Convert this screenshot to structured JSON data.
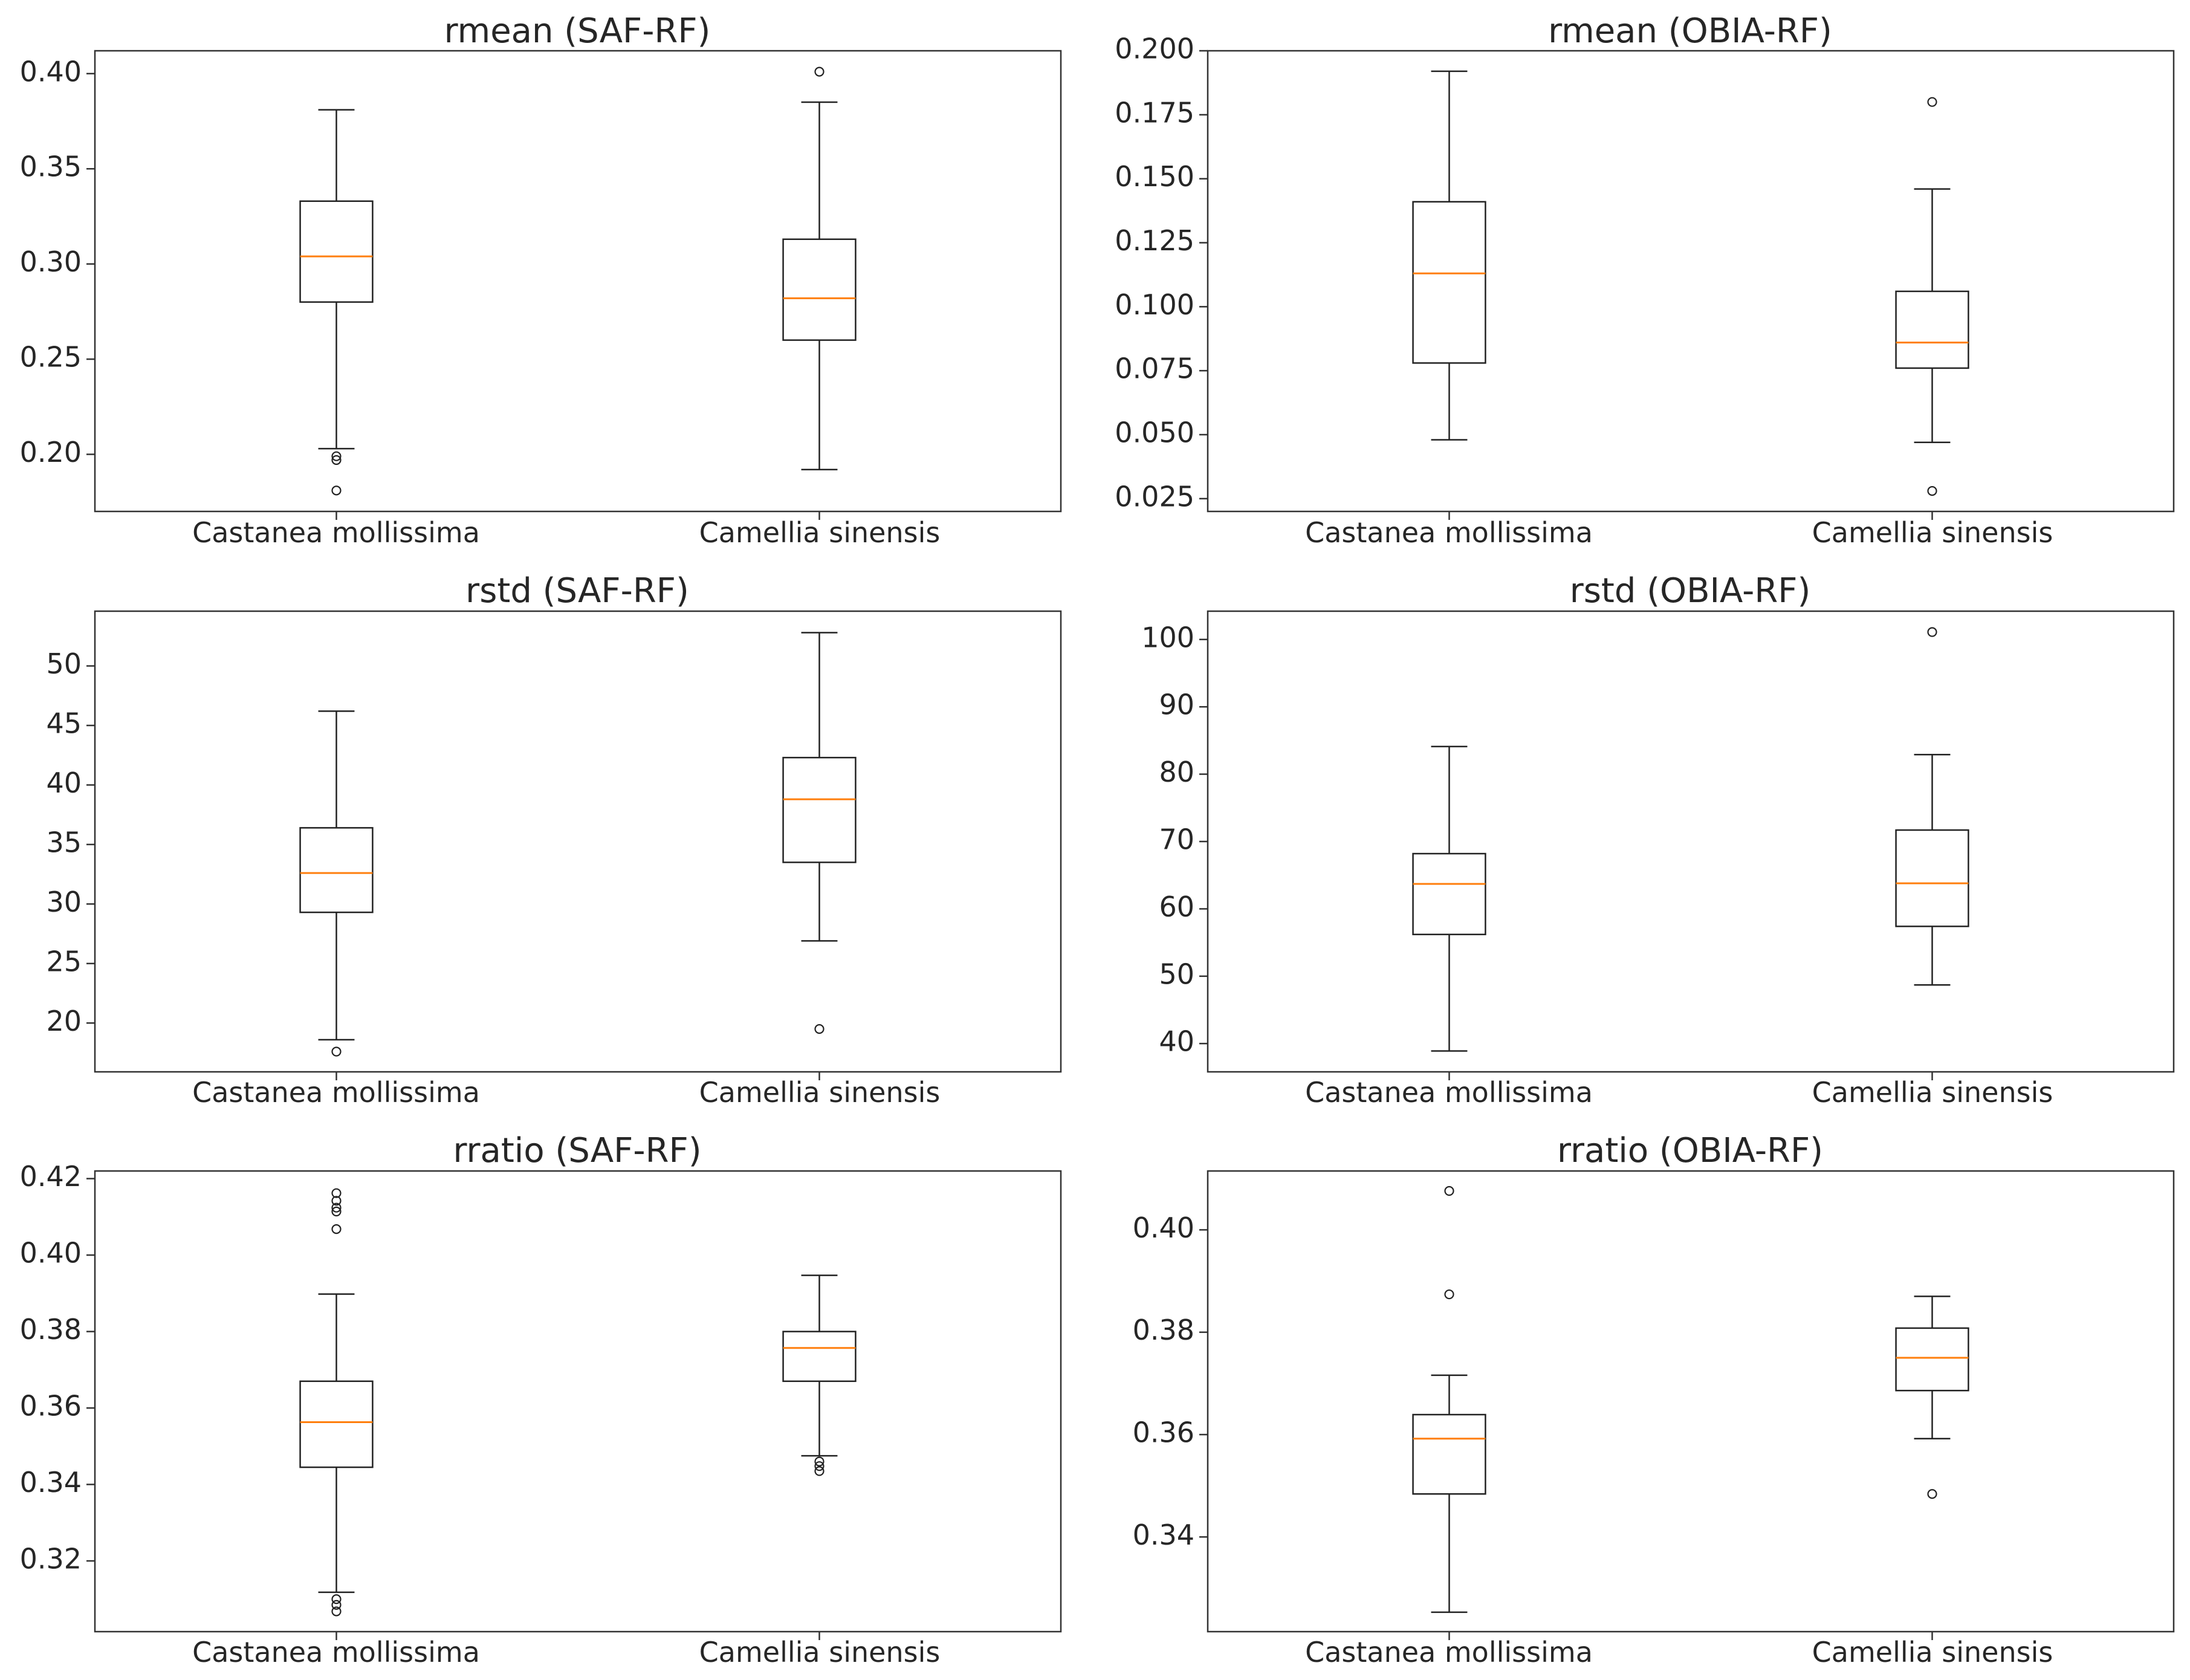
{
  "chart_data": [
    {
      "type": "box",
      "title": "rmean (SAF-RF)",
      "categories": [
        "Castanea mollissima",
        "Camellia sinensis"
      ],
      "ylim": [
        0.17,
        0.412
      ],
      "yticks": [
        0.2,
        0.25,
        0.3,
        0.35,
        0.4
      ],
      "ytick_labels": [
        "0.20",
        "0.25",
        "0.30",
        "0.35",
        "0.40"
      ],
      "boxes": [
        {
          "whisker_low": 0.203,
          "q1": 0.28,
          "median": 0.304,
          "q3": 0.333,
          "whisker_high": 0.381,
          "outliers": [
            0.199,
            0.197,
            0.181
          ]
        },
        {
          "whisker_low": 0.192,
          "q1": 0.26,
          "median": 0.282,
          "q3": 0.313,
          "whisker_high": 0.385,
          "outliers": [
            0.401
          ]
        }
      ]
    },
    {
      "type": "box",
      "title": "rmean (OBIA-RF)",
      "categories": [
        "Castanea mollissima",
        "Camellia sinensis"
      ],
      "ylim": [
        0.02,
        0.2
      ],
      "yticks": [
        0.025,
        0.05,
        0.075,
        0.1,
        0.125,
        0.15,
        0.175,
        0.2
      ],
      "ytick_labels": [
        "0.025",
        "0.050",
        "0.075",
        "0.100",
        "0.125",
        "0.150",
        "0.175",
        "0.200"
      ],
      "boxes": [
        {
          "whisker_low": 0.048,
          "q1": 0.078,
          "median": 0.113,
          "q3": 0.141,
          "whisker_high": 0.192,
          "outliers": []
        },
        {
          "whisker_low": 0.047,
          "q1": 0.076,
          "median": 0.086,
          "q3": 0.106,
          "whisker_high": 0.146,
          "outliers": [
            0.18,
            0.028
          ]
        }
      ]
    },
    {
      "type": "box",
      "title": "rstd (SAF-RF)",
      "categories": [
        "Castanea mollissima",
        "Camellia sinensis"
      ],
      "ylim": [
        15.9,
        54.6
      ],
      "yticks": [
        20,
        25,
        30,
        35,
        40,
        45,
        50
      ],
      "ytick_labels": [
        "20",
        "25",
        "30",
        "35",
        "40",
        "45",
        "50"
      ],
      "boxes": [
        {
          "whisker_low": 18.6,
          "q1": 29.3,
          "median": 32.6,
          "q3": 36.4,
          "whisker_high": 46.2,
          "outliers": [
            17.6
          ]
        },
        {
          "whisker_low": 26.9,
          "q1": 33.5,
          "median": 38.8,
          "q3": 42.3,
          "whisker_high": 52.8,
          "outliers": [
            19.5
          ]
        }
      ]
    },
    {
      "type": "box",
      "title": "rstd (OBIA-RF)",
      "categories": [
        "Castanea mollissima",
        "Camellia sinensis"
      ],
      "ylim": [
        35.8,
        104.2
      ],
      "yticks": [
        40,
        50,
        60,
        70,
        80,
        90,
        100
      ],
      "ytick_labels": [
        "40",
        "50",
        "60",
        "70",
        "80",
        "90",
        "100"
      ],
      "boxes": [
        {
          "whisker_low": 38.9,
          "q1": 56.2,
          "median": 63.7,
          "q3": 68.2,
          "whisker_high": 84.1,
          "outliers": []
        },
        {
          "whisker_low": 48.7,
          "q1": 57.4,
          "median": 63.8,
          "q3": 71.7,
          "whisker_high": 82.9,
          "outliers": [
            101.1
          ]
        }
      ]
    },
    {
      "type": "box",
      "title": "rratio (SAF-RF)",
      "categories": [
        "Castanea mollissima",
        "Camellia sinensis"
      ],
      "ylim": [
        0.3015,
        0.422
      ],
      "yticks": [
        0.32,
        0.34,
        0.36,
        0.38,
        0.4,
        0.42
      ],
      "ytick_labels": [
        "0.32",
        "0.34",
        "0.36",
        "0.38",
        "0.40",
        "0.42"
      ],
      "boxes": [
        {
          "whisker_low": 0.3118,
          "q1": 0.3445,
          "median": 0.3563,
          "q3": 0.367,
          "whisker_high": 0.3898,
          "outliers": [
            0.4162,
            0.4142,
            0.4124,
            0.4114,
            0.4068,
            0.31,
            0.3085,
            0.3068
          ]
        },
        {
          "whisker_low": 0.3475,
          "q1": 0.367,
          "median": 0.3757,
          "q3": 0.38,
          "whisker_high": 0.3947,
          "outliers": [
            0.346,
            0.3448,
            0.3435
          ]
        }
      ]
    },
    {
      "type": "box",
      "title": "rratio (OBIA-RF)",
      "categories": [
        "Castanea mollissima",
        "Camellia sinensis"
      ],
      "ylim": [
        0.3215,
        0.4115
      ],
      "yticks": [
        0.34,
        0.36,
        0.38,
        0.4
      ],
      "ytick_labels": [
        "0.34",
        "0.36",
        "0.38",
        "0.40"
      ],
      "boxes": [
        {
          "whisker_low": 0.3253,
          "q1": 0.3484,
          "median": 0.3592,
          "q3": 0.3639,
          "whisker_high": 0.3716,
          "outliers": [
            0.4076,
            0.3874
          ]
        },
        {
          "whisker_low": 0.3592,
          "q1": 0.3686,
          "median": 0.375,
          "q3": 0.3808,
          "whisker_high": 0.387,
          "outliers": [
            0.3484
          ]
        }
      ]
    }
  ],
  "colors": {
    "median": "#ff7f0e",
    "box": "#222222",
    "frame": "#333333",
    "text": "#262626"
  }
}
